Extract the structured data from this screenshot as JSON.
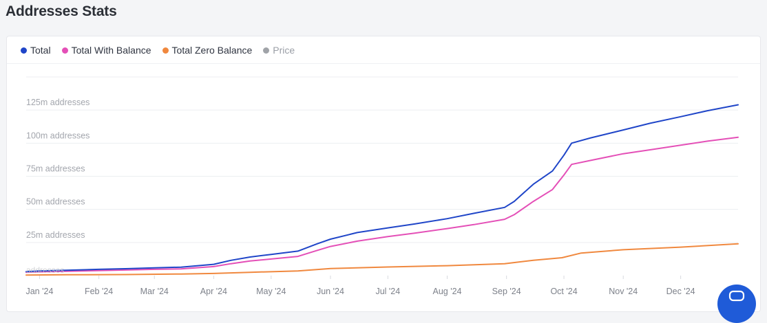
{
  "page": {
    "title": "Addresses Stats"
  },
  "chart_data": {
    "type": "line",
    "title": "",
    "legend_position": "top-left",
    "grid": "horizontal",
    "x_ticks": [
      "Jan '24",
      "Feb '24",
      "Mar '24",
      "Apr '24",
      "May '24",
      "Jun '24",
      "Jul '24",
      "Aug '24",
      "Sep '24",
      "Oct '24",
      "Nov '24",
      "Dec '24"
    ],
    "xlim": [
      "2023-12-25",
      "2024-12-31"
    ],
    "y_ticks": [
      {
        "value": 25,
        "label": "25m addresses"
      },
      {
        "value": 50,
        "label": "50m addresses"
      },
      {
        "value": 75,
        "label": "75m addresses"
      },
      {
        "value": 100,
        "label": "100m addresses"
      },
      {
        "value": 125,
        "label": "125m addresses"
      }
    ],
    "y_bottom_label": "addresses",
    "ylim": [
      0,
      150
    ],
    "y_unit": "million addresses",
    "series": [
      {
        "name": "Total",
        "color": "#1f45c8",
        "hidden": false,
        "points": [
          [
            "2023-12-25",
            3.0
          ],
          [
            "2024-01-01",
            3.5
          ],
          [
            "2024-01-15",
            4.0
          ],
          [
            "2024-02-01",
            4.7
          ],
          [
            "2024-02-15",
            5.2
          ],
          [
            "2024-03-01",
            5.8
          ],
          [
            "2024-03-15",
            6.4
          ],
          [
            "2024-04-01",
            8.5
          ],
          [
            "2024-04-10",
            11.5
          ],
          [
            "2024-04-20",
            14.0
          ],
          [
            "2024-05-01",
            16.0
          ],
          [
            "2024-05-15",
            18.5
          ],
          [
            "2024-05-25",
            24.0
          ],
          [
            "2024-06-01",
            27.5
          ],
          [
            "2024-06-15",
            32.5
          ],
          [
            "2024-07-01",
            36.0
          ],
          [
            "2024-07-15",
            39.0
          ],
          [
            "2024-08-01",
            43.0
          ],
          [
            "2024-08-15",
            47.0
          ],
          [
            "2024-08-31",
            51.5
          ],
          [
            "2024-09-05",
            56.0
          ],
          [
            "2024-09-15",
            69.0
          ],
          [
            "2024-09-25",
            79.0
          ],
          [
            "2024-10-01",
            91.0
          ],
          [
            "2024-10-05",
            100.0
          ],
          [
            "2024-10-15",
            104.0
          ],
          [
            "2024-11-01",
            110.0
          ],
          [
            "2024-11-15",
            115.0
          ],
          [
            "2024-12-01",
            120.0
          ],
          [
            "2024-12-15",
            124.5
          ],
          [
            "2024-12-31",
            129.0
          ]
        ]
      },
      {
        "name": "Total With Balance",
        "color": "#e44fb7",
        "hidden": false,
        "points": [
          [
            "2023-12-25",
            2.5
          ],
          [
            "2024-01-01",
            2.8
          ],
          [
            "2024-01-15",
            3.2
          ],
          [
            "2024-02-01",
            3.8
          ],
          [
            "2024-02-15",
            4.2
          ],
          [
            "2024-03-01",
            4.7
          ],
          [
            "2024-03-15",
            5.1
          ],
          [
            "2024-04-01",
            6.8
          ],
          [
            "2024-04-10",
            9.0
          ],
          [
            "2024-04-20",
            11.0
          ],
          [
            "2024-05-01",
            12.5
          ],
          [
            "2024-05-15",
            14.5
          ],
          [
            "2024-05-25",
            19.0
          ],
          [
            "2024-06-01",
            22.0
          ],
          [
            "2024-06-15",
            26.0
          ],
          [
            "2024-07-01",
            29.5
          ],
          [
            "2024-07-15",
            32.0
          ],
          [
            "2024-08-01",
            35.5
          ],
          [
            "2024-08-15",
            38.5
          ],
          [
            "2024-08-31",
            42.5
          ],
          [
            "2024-09-05",
            46.0
          ],
          [
            "2024-09-15",
            56.0
          ],
          [
            "2024-09-25",
            65.0
          ],
          [
            "2024-10-01",
            76.0
          ],
          [
            "2024-10-05",
            84.0
          ],
          [
            "2024-10-15",
            87.0
          ],
          [
            "2024-11-01",
            92.0
          ],
          [
            "2024-11-15",
            95.0
          ],
          [
            "2024-12-01",
            98.5
          ],
          [
            "2024-12-15",
            101.5
          ],
          [
            "2024-12-31",
            104.5
          ]
        ]
      },
      {
        "name": "Total Zero Balance",
        "color": "#f0883e",
        "hidden": false,
        "points": [
          [
            "2023-12-25",
            0.4
          ],
          [
            "2024-01-15",
            0.6
          ],
          [
            "2024-02-15",
            0.8
          ],
          [
            "2024-03-15",
            1.2
          ],
          [
            "2024-04-01",
            1.6
          ],
          [
            "2024-04-20",
            2.5
          ],
          [
            "2024-05-15",
            3.5
          ],
          [
            "2024-06-01",
            5.3
          ],
          [
            "2024-07-01",
            6.5
          ],
          [
            "2024-08-01",
            7.5
          ],
          [
            "2024-08-31",
            9.0
          ],
          [
            "2024-09-15",
            11.5
          ],
          [
            "2024-09-30",
            13.5
          ],
          [
            "2024-10-10",
            17.0
          ],
          [
            "2024-11-01",
            19.5
          ],
          [
            "2024-12-01",
            21.5
          ],
          [
            "2024-12-31",
            24.0
          ]
        ]
      },
      {
        "name": "Price",
        "color": "#a0a3a8",
        "hidden": true,
        "points": []
      }
    ]
  },
  "fab": {
    "icon": "chat-bubble-icon"
  }
}
